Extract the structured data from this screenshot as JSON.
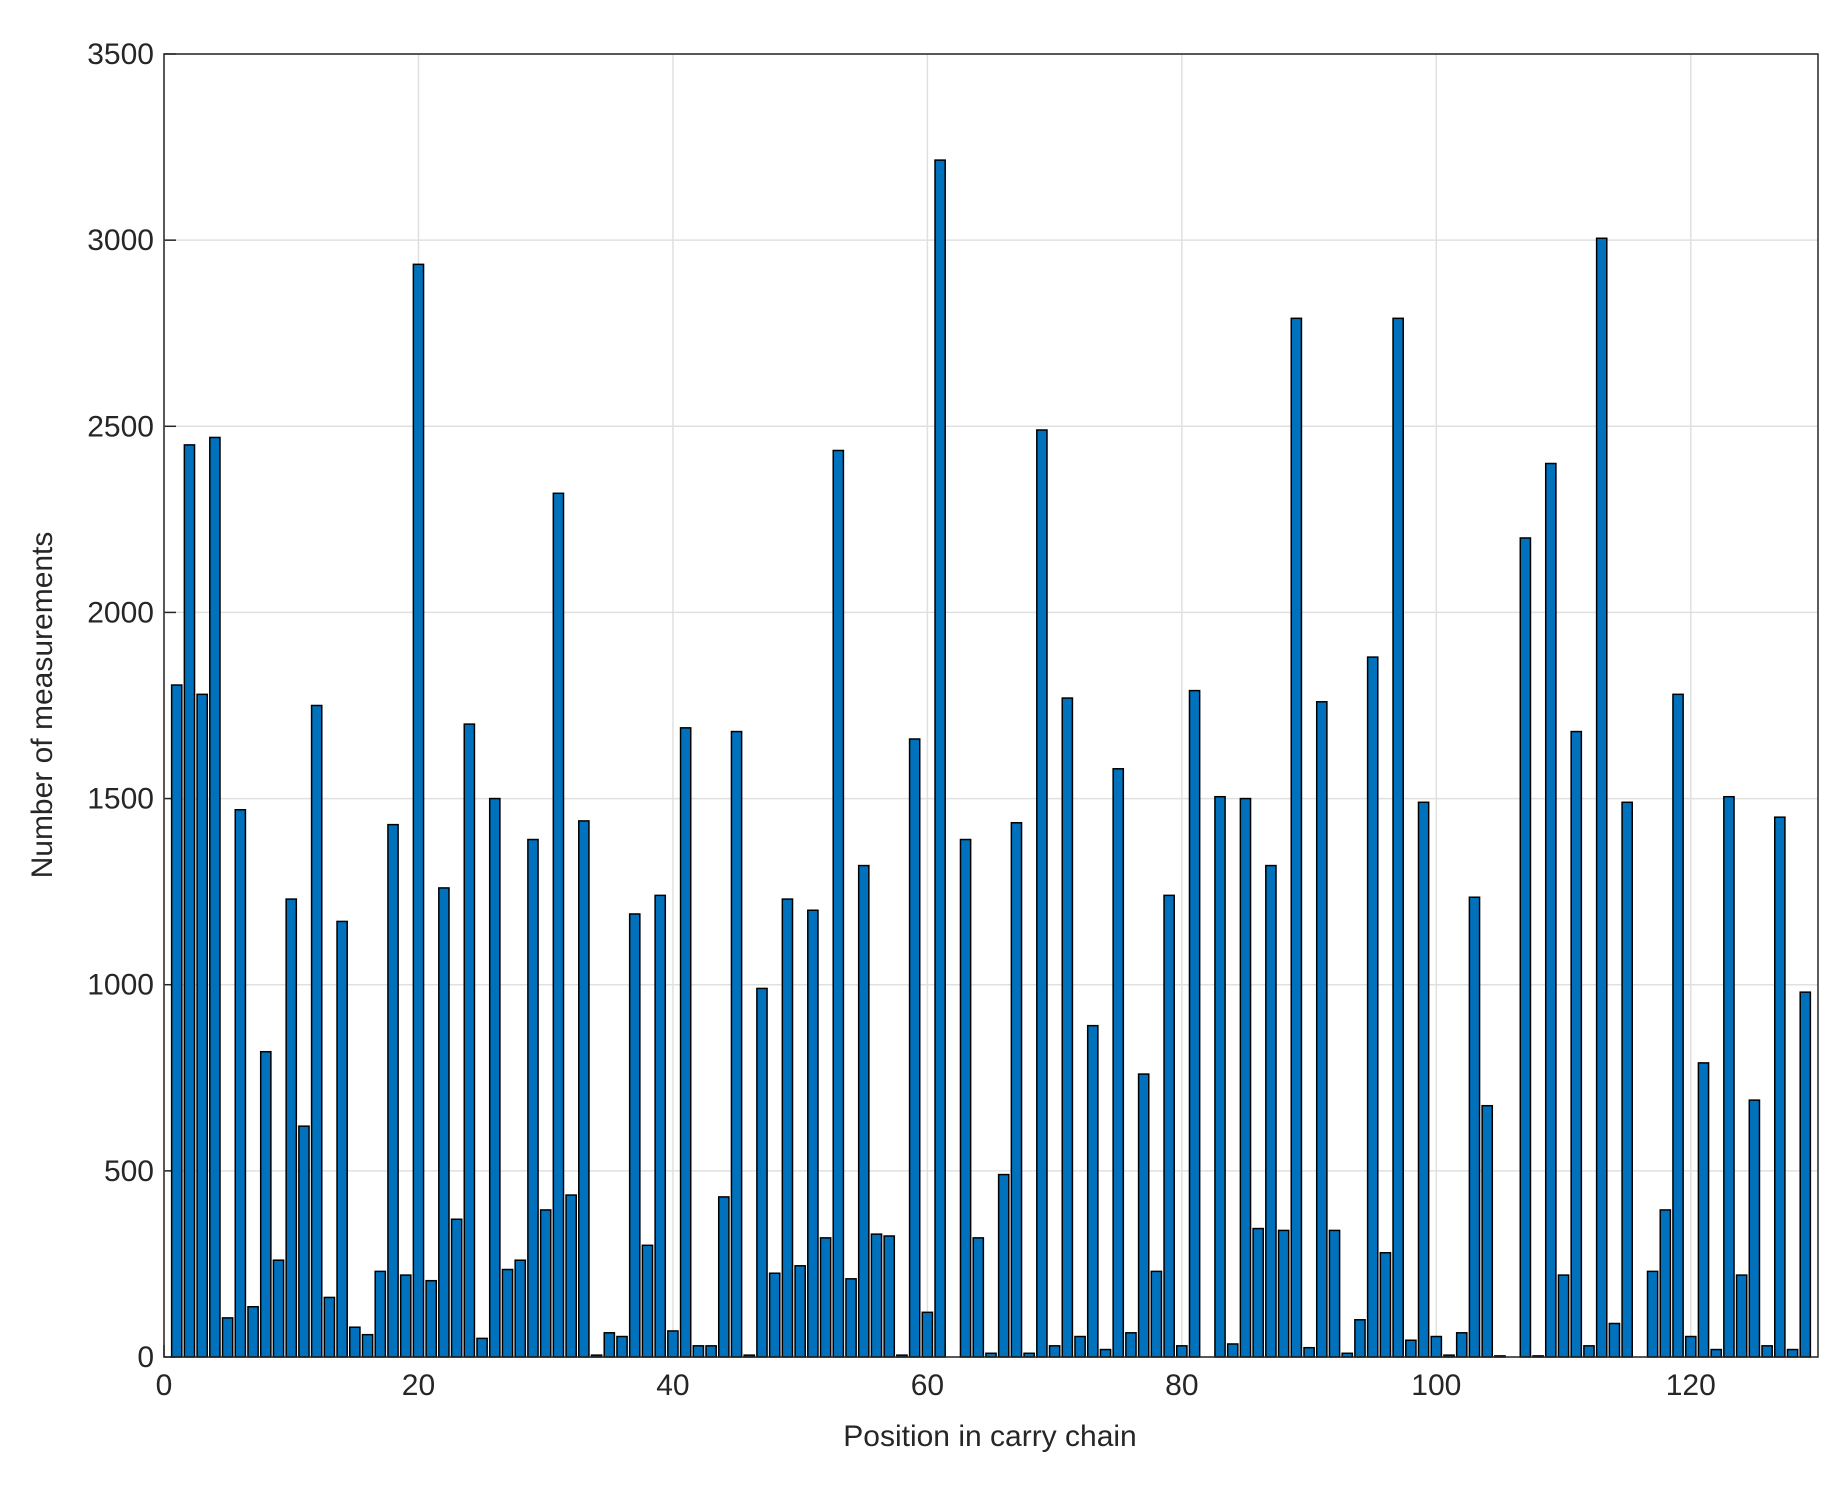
{
  "chart_data": {
    "type": "bar",
    "x_label": "Position in carry chain",
    "y_label": "Number of measurements",
    "color": "#0072bd",
    "grid": true,
    "xlim": [
      0,
      130
    ],
    "xticks": [
      0,
      20,
      40,
      60,
      80,
      100,
      120
    ],
    "ylim": [
      0,
      3500
    ],
    "yticks": [
      0,
      500,
      1000,
      1500,
      2000,
      2500,
      3000,
      3500
    ],
    "x": [
      1,
      2,
      3,
      4,
      5,
      6,
      7,
      8,
      9,
      10,
      11,
      12,
      13,
      14,
      15,
      16,
      17,
      18,
      19,
      20,
      21,
      22,
      23,
      24,
      25,
      26,
      27,
      28,
      29,
      30,
      31,
      32,
      33,
      34,
      35,
      36,
      37,
      38,
      39,
      40,
      41,
      42,
      43,
      44,
      45,
      46,
      47,
      48,
      49,
      50,
      51,
      52,
      53,
      54,
      55,
      56,
      57,
      58,
      59,
      60,
      61,
      62,
      63,
      64,
      65,
      66,
      67,
      68,
      69,
      70,
      71,
      72,
      73,
      74,
      75,
      76,
      77,
      78,
      79,
      80,
      81,
      82,
      83,
      84,
      85,
      86,
      87,
      88,
      89,
      90,
      91,
      92,
      93,
      94,
      95,
      96,
      97,
      98,
      99,
      100,
      101,
      102,
      103,
      104,
      105,
      106,
      107,
      108,
      109,
      110,
      111,
      112,
      113,
      114,
      115,
      116,
      117,
      118,
      119,
      120,
      121,
      122,
      123,
      124,
      125,
      126,
      127,
      128,
      129
    ],
    "values": [
      1805,
      2450,
      1780,
      2470,
      105,
      1470,
      135,
      820,
      260,
      1230,
      620,
      1750,
      160,
      1170,
      80,
      60,
      230,
      1430,
      220,
      2935,
      205,
      1260,
      370,
      1700,
      50,
      1500,
      235,
      260,
      1390,
      395,
      2320,
      435,
      1440,
      5,
      65,
      55,
      1190,
      300,
      1240,
      70,
      1690,
      30,
      30,
      430,
      1680,
      5,
      990,
      225,
      1230,
      245,
      1200,
      320,
      2435,
      210,
      1320,
      330,
      325,
      5,
      1660,
      120,
      3215,
      0,
      1390,
      320,
      10,
      490,
      1435,
      10,
      2490,
      30,
      1770,
      55,
      890,
      20,
      1580,
      65,
      760,
      230,
      1240,
      30,
      1790,
      0,
      1505,
      35,
      1500,
      345,
      1320,
      340,
      2790,
      25,
      1760,
      340,
      10,
      100,
      1880,
      280,
      2790,
      45,
      1490,
      55,
      5,
      65,
      1235,
      675,
      3,
      0,
      2200,
      3,
      2400,
      220,
      1680,
      30,
      3005,
      90,
      1490,
      0,
      230,
      395,
      1780,
      55,
      790,
      20,
      1505,
      220,
      690,
      30,
      1450,
      20,
      980
    ]
  }
}
